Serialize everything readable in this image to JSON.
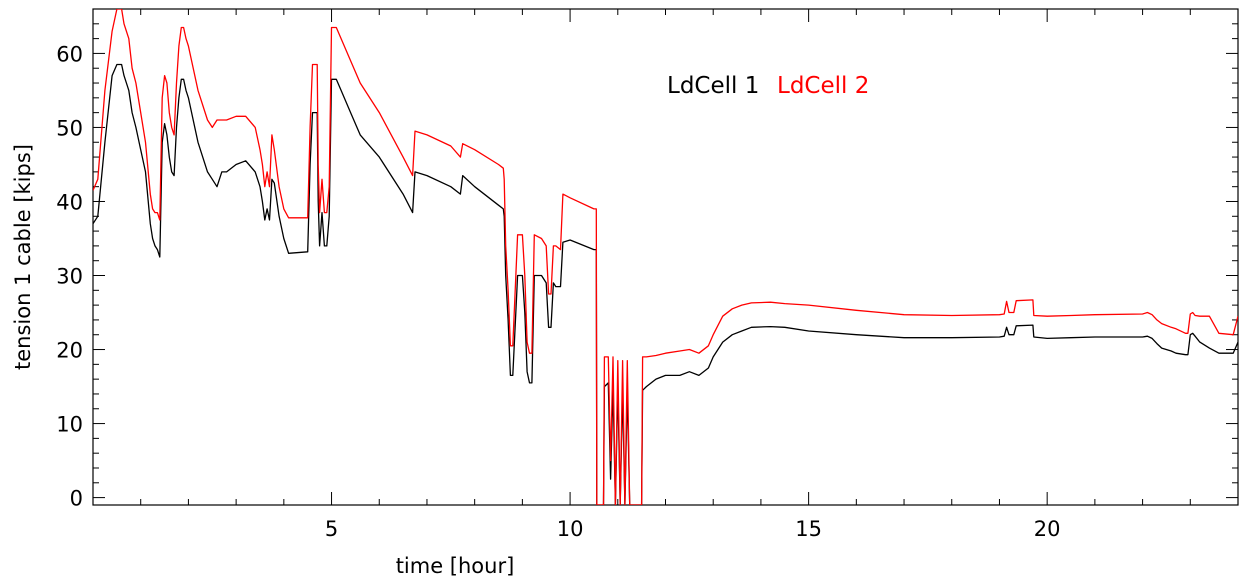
{
  "chart_data": {
    "type": "line",
    "title": "",
    "xlabel": "time [hour]",
    "ylabel": "tension 1 cable [kips]",
    "xlim": [
      0,
      24
    ],
    "ylim": [
      -1,
      66
    ],
    "xticks": [
      5,
      10,
      15,
      20
    ],
    "yticks": [
      0,
      10,
      20,
      30,
      40,
      50,
      60
    ],
    "grid": false,
    "legend_position": "top-center",
    "series": [
      {
        "name": "LdCell 1",
        "color": "#000000",
        "points": [
          [
            0.0,
            37
          ],
          [
            0.1,
            38
          ],
          [
            0.25,
            48
          ],
          [
            0.4,
            57
          ],
          [
            0.5,
            58.5
          ],
          [
            0.6,
            58.5
          ],
          [
            0.65,
            57
          ],
          [
            0.75,
            55
          ],
          [
            0.82,
            52
          ],
          [
            0.9,
            50
          ],
          [
            1.0,
            47
          ],
          [
            1.1,
            44
          ],
          [
            1.2,
            37
          ],
          [
            1.25,
            35
          ],
          [
            1.3,
            34
          ],
          [
            1.35,
            33.5
          ],
          [
            1.4,
            32.5
          ],
          [
            1.45,
            48
          ],
          [
            1.5,
            50.5
          ],
          [
            1.55,
            49
          ],
          [
            1.6,
            46
          ],
          [
            1.65,
            44
          ],
          [
            1.7,
            43.5
          ],
          [
            1.75,
            50
          ],
          [
            1.8,
            54
          ],
          [
            1.85,
            56.5
          ],
          [
            1.9,
            56.5
          ],
          [
            1.95,
            55
          ],
          [
            2.0,
            54
          ],
          [
            2.2,
            48
          ],
          [
            2.4,
            44
          ],
          [
            2.5,
            43
          ],
          [
            2.6,
            42
          ],
          [
            2.7,
            44
          ],
          [
            2.8,
            44
          ],
          [
            3.0,
            45
          ],
          [
            3.2,
            45.5
          ],
          [
            3.4,
            44
          ],
          [
            3.5,
            42
          ],
          [
            3.55,
            40
          ],
          [
            3.6,
            37.5
          ],
          [
            3.65,
            39
          ],
          [
            3.7,
            37.5
          ],
          [
            3.75,
            43
          ],
          [
            3.8,
            42.5
          ],
          [
            3.9,
            38
          ],
          [
            4.0,
            35
          ],
          [
            4.1,
            33
          ],
          [
            4.5,
            33.2
          ],
          [
            4.55,
            45
          ],
          [
            4.6,
            52
          ],
          [
            4.7,
            52
          ],
          [
            4.72,
            40
          ],
          [
            4.75,
            34
          ],
          [
            4.8,
            38.5
          ],
          [
            4.85,
            34
          ],
          [
            4.9,
            34
          ],
          [
            4.95,
            38
          ],
          [
            5.0,
            56.5
          ],
          [
            5.1,
            56.5
          ],
          [
            5.2,
            55
          ],
          [
            5.4,
            52
          ],
          [
            5.6,
            49
          ],
          [
            6.0,
            46
          ],
          [
            6.5,
            41
          ],
          [
            6.7,
            38.5
          ],
          [
            6.75,
            44
          ],
          [
            7.0,
            43.5
          ],
          [
            7.5,
            42
          ],
          [
            7.7,
            41
          ],
          [
            7.75,
            43.5
          ],
          [
            8.0,
            42
          ],
          [
            8.5,
            39.5
          ],
          [
            8.6,
            39
          ],
          [
            8.62,
            38
          ],
          [
            8.65,
            30
          ],
          [
            8.7,
            24
          ],
          [
            8.75,
            16.5
          ],
          [
            8.8,
            16.5
          ],
          [
            8.9,
            30
          ],
          [
            9.0,
            30
          ],
          [
            9.05,
            25
          ],
          [
            9.1,
            17
          ],
          [
            9.15,
            15.5
          ],
          [
            9.2,
            15.5
          ],
          [
            9.25,
            30
          ],
          [
            9.4,
            30
          ],
          [
            9.5,
            29
          ],
          [
            9.55,
            23
          ],
          [
            9.6,
            23
          ],
          [
            9.65,
            29
          ],
          [
            9.7,
            28.5
          ],
          [
            9.8,
            28.5
          ],
          [
            9.85,
            34.5
          ],
          [
            10.0,
            34.8
          ],
          [
            10.5,
            33.5
          ],
          [
            10.55,
            33.5
          ],
          [
            10.56,
            -1
          ],
          [
            10.7,
            -1
          ],
          [
            10.72,
            15
          ],
          [
            10.8,
            15.5
          ],
          [
            10.85,
            2.5
          ],
          [
            10.9,
            15
          ],
          [
            10.95,
            -1
          ],
          [
            11.0,
            15
          ],
          [
            11.05,
            -1
          ],
          [
            11.1,
            14.5
          ],
          [
            11.15,
            -1
          ],
          [
            11.2,
            14.5
          ],
          [
            11.25,
            -1
          ],
          [
            11.5,
            -1
          ],
          [
            11.52,
            14.5
          ],
          [
            11.6,
            15
          ],
          [
            11.8,
            16
          ],
          [
            12.0,
            16.5
          ],
          [
            12.3,
            16.5
          ],
          [
            12.5,
            17
          ],
          [
            12.7,
            16.5
          ],
          [
            12.9,
            17.5
          ],
          [
            13.0,
            19
          ],
          [
            13.2,
            21
          ],
          [
            13.4,
            22
          ],
          [
            13.6,
            22.5
          ],
          [
            13.8,
            23
          ],
          [
            14.2,
            23.1
          ],
          [
            14.5,
            23
          ],
          [
            15.0,
            22.5
          ],
          [
            16.0,
            22
          ],
          [
            17.0,
            21.6
          ],
          [
            18.0,
            21.6
          ],
          [
            19.0,
            21.7
          ],
          [
            19.1,
            21.8
          ],
          [
            19.15,
            23
          ],
          [
            19.2,
            22
          ],
          [
            19.3,
            22
          ],
          [
            19.35,
            23.2
          ],
          [
            19.7,
            23.3
          ],
          [
            19.72,
            21.7
          ],
          [
            20.0,
            21.5
          ],
          [
            20.5,
            21.6
          ],
          [
            21.0,
            21.7
          ],
          [
            22.0,
            21.7
          ],
          [
            22.1,
            21.8
          ],
          [
            22.2,
            21.5
          ],
          [
            22.3,
            20.8
          ],
          [
            22.4,
            20.2
          ],
          [
            22.6,
            19.8
          ],
          [
            22.7,
            19.5
          ],
          [
            22.9,
            19.3
          ],
          [
            22.95,
            19.3
          ],
          [
            23.0,
            22
          ],
          [
            23.05,
            22.2
          ],
          [
            23.1,
            21.8
          ],
          [
            23.2,
            21
          ],
          [
            23.4,
            20.2
          ],
          [
            23.6,
            19.5
          ],
          [
            23.9,
            19.5
          ],
          [
            24.0,
            21
          ]
        ]
      },
      {
        "name": "LdCell 2",
        "color": "#ff0000",
        "points": [
          [
            0.0,
            41.5
          ],
          [
            0.1,
            43
          ],
          [
            0.25,
            55
          ],
          [
            0.4,
            63
          ],
          [
            0.5,
            66
          ],
          [
            0.6,
            66
          ],
          [
            0.65,
            64
          ],
          [
            0.75,
            62
          ],
          [
            0.82,
            58
          ],
          [
            0.9,
            56
          ],
          [
            1.0,
            52
          ],
          [
            1.1,
            48
          ],
          [
            1.2,
            41
          ],
          [
            1.25,
            39
          ],
          [
            1.3,
            38.5
          ],
          [
            1.35,
            38.5
          ],
          [
            1.4,
            37.5
          ],
          [
            1.45,
            54
          ],
          [
            1.5,
            57
          ],
          [
            1.55,
            56
          ],
          [
            1.6,
            52
          ],
          [
            1.65,
            50
          ],
          [
            1.7,
            49
          ],
          [
            1.75,
            56
          ],
          [
            1.8,
            61
          ],
          [
            1.85,
            63.5
          ],
          [
            1.9,
            63.5
          ],
          [
            1.95,
            62
          ],
          [
            2.0,
            61
          ],
          [
            2.2,
            55
          ],
          [
            2.4,
            51
          ],
          [
            2.5,
            50
          ],
          [
            2.6,
            51
          ],
          [
            2.7,
            51
          ],
          [
            2.8,
            51
          ],
          [
            3.0,
            51.5
          ],
          [
            3.2,
            51.5
          ],
          [
            3.4,
            50
          ],
          [
            3.5,
            47
          ],
          [
            3.55,
            45
          ],
          [
            3.6,
            42
          ],
          [
            3.65,
            44
          ],
          [
            3.7,
            42
          ],
          [
            3.75,
            49
          ],
          [
            3.8,
            47
          ],
          [
            3.9,
            42
          ],
          [
            4.0,
            39
          ],
          [
            4.1,
            37.8
          ],
          [
            4.5,
            37.8
          ],
          [
            4.55,
            50
          ],
          [
            4.6,
            58.5
          ],
          [
            4.7,
            58.5
          ],
          [
            4.72,
            45
          ],
          [
            4.75,
            38.5
          ],
          [
            4.8,
            43
          ],
          [
            4.85,
            38.5
          ],
          [
            4.9,
            38.5
          ],
          [
            4.95,
            42
          ],
          [
            5.0,
            63.5
          ],
          [
            5.1,
            63.5
          ],
          [
            5.2,
            62
          ],
          [
            5.4,
            59
          ],
          [
            5.6,
            56
          ],
          [
            6.0,
            52
          ],
          [
            6.5,
            46
          ],
          [
            6.7,
            43.5
          ],
          [
            6.75,
            49.5
          ],
          [
            7.0,
            49
          ],
          [
            7.5,
            47.5
          ],
          [
            7.7,
            46
          ],
          [
            7.75,
            47.8
          ],
          [
            8.0,
            47
          ],
          [
            8.5,
            45
          ],
          [
            8.6,
            44.5
          ],
          [
            8.62,
            43
          ],
          [
            8.65,
            34
          ],
          [
            8.7,
            28
          ],
          [
            8.75,
            20.5
          ],
          [
            8.8,
            20.5
          ],
          [
            8.9,
            35.5
          ],
          [
            9.0,
            35.5
          ],
          [
            9.05,
            30
          ],
          [
            9.1,
            21
          ],
          [
            9.15,
            19.5
          ],
          [
            9.2,
            19.5
          ],
          [
            9.25,
            35.5
          ],
          [
            9.4,
            35
          ],
          [
            9.5,
            34
          ],
          [
            9.55,
            27.5
          ],
          [
            9.6,
            27.5
          ],
          [
            9.65,
            34
          ],
          [
            9.7,
            34
          ],
          [
            9.8,
            33.5
          ],
          [
            9.85,
            41
          ],
          [
            10.0,
            40.5
          ],
          [
            10.5,
            39
          ],
          [
            10.55,
            39
          ],
          [
            10.56,
            -1
          ],
          [
            10.7,
            -1
          ],
          [
            10.72,
            19
          ],
          [
            10.8,
            19
          ],
          [
            10.85,
            5
          ],
          [
            10.9,
            19
          ],
          [
            10.95,
            -1
          ],
          [
            11.0,
            18.5
          ],
          [
            11.05,
            -1
          ],
          [
            11.1,
            18.5
          ],
          [
            11.15,
            -1
          ],
          [
            11.2,
            18.5
          ],
          [
            11.25,
            -1
          ],
          [
            11.5,
            -1
          ],
          [
            11.52,
            19
          ],
          [
            11.6,
            19
          ],
          [
            11.8,
            19.2
          ],
          [
            12.0,
            19.5
          ],
          [
            12.3,
            19.8
          ],
          [
            12.5,
            20
          ],
          [
            12.7,
            19.5
          ],
          [
            12.9,
            20.5
          ],
          [
            13.0,
            22
          ],
          [
            13.2,
            24.5
          ],
          [
            13.4,
            25.5
          ],
          [
            13.6,
            26
          ],
          [
            13.8,
            26.3
          ],
          [
            14.2,
            26.4
          ],
          [
            14.5,
            26.2
          ],
          [
            15.0,
            26
          ],
          [
            16.0,
            25.3
          ],
          [
            17.0,
            24.7
          ],
          [
            18.0,
            24.6
          ],
          [
            19.0,
            24.7
          ],
          [
            19.1,
            24.8
          ],
          [
            19.15,
            26.5
          ],
          [
            19.2,
            25
          ],
          [
            19.3,
            25
          ],
          [
            19.35,
            26.6
          ],
          [
            19.7,
            26.7
          ],
          [
            19.72,
            24.6
          ],
          [
            20.0,
            24.5
          ],
          [
            20.5,
            24.6
          ],
          [
            21.0,
            24.7
          ],
          [
            22.0,
            24.8
          ],
          [
            22.1,
            25
          ],
          [
            22.2,
            24.7
          ],
          [
            22.3,
            24
          ],
          [
            22.4,
            23.5
          ],
          [
            22.6,
            23
          ],
          [
            22.7,
            22.8
          ],
          [
            22.9,
            22.2
          ],
          [
            22.95,
            22.2
          ],
          [
            23.0,
            24.8
          ],
          [
            23.05,
            25
          ],
          [
            23.1,
            24.6
          ],
          [
            23.2,
            24.5
          ],
          [
            23.4,
            24.5
          ],
          [
            23.6,
            22.2
          ],
          [
            23.9,
            22
          ],
          [
            24.0,
            24.5
          ]
        ]
      }
    ]
  }
}
